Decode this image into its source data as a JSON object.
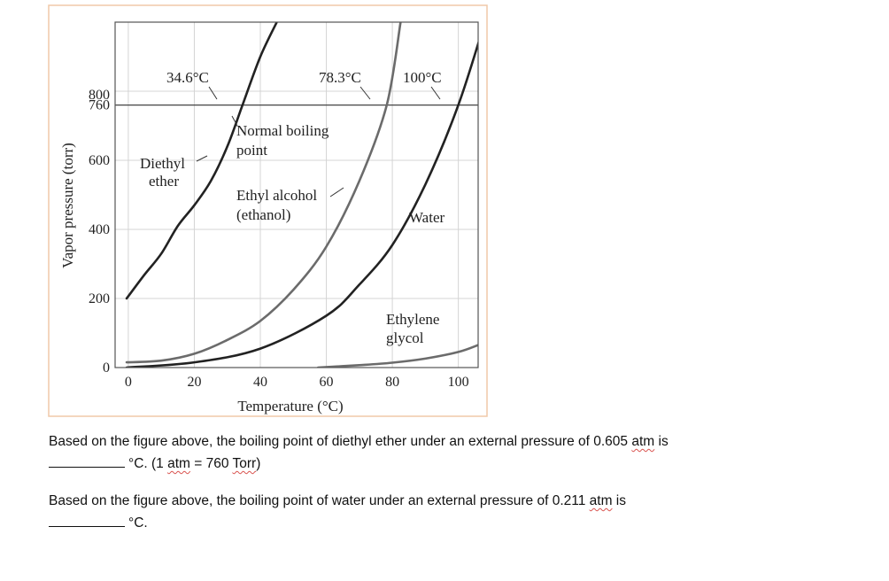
{
  "chart_data": {
    "type": "line",
    "xlabel": "Temperature (°C)",
    "ylabel": "Vapor pressure (torr)",
    "xlim": [
      -4,
      106
    ],
    "ylim": [
      0,
      1000
    ],
    "x_ticks": [
      0,
      20,
      40,
      60,
      80,
      100
    ],
    "y_ticks": [
      0,
      200,
      400,
      600,
      760,
      800
    ],
    "grid": true,
    "reference_line": {
      "y": 760,
      "label": "Normal boiling point"
    },
    "boiling_point_labels": [
      "34.6°C",
      "78.3°C",
      "100°C"
    ],
    "series": [
      {
        "name": "Diethyl ether",
        "color": "#222222",
        "x": [
          -0.5,
          5,
          10,
          15,
          20,
          25,
          30,
          34.6,
          40,
          45
        ],
        "y": [
          200,
          270,
          330,
          410,
          470,
          540,
          640,
          760,
          900,
          1000
        ]
      },
      {
        "name": "Ethyl alcohol (ethanol)",
        "color": "#6b6b6b",
        "x": [
          -0.5,
          10,
          20,
          30,
          40,
          50,
          60,
          70,
          78.3,
          82.5
        ],
        "y": [
          15,
          20,
          40,
          80,
          135,
          225,
          350,
          540,
          760,
          1000
        ]
      },
      {
        "name": "Water",
        "color": "#222222",
        "x": [
          -0.5,
          20,
          40,
          60,
          70,
          80,
          90,
          100,
          108
        ],
        "y": [
          0,
          15,
          55,
          150,
          240,
          355,
          530,
          760,
          1000
        ]
      },
      {
        "name": "Ethylene glycol",
        "color": "#6b6b6b",
        "x": [
          57.5,
          70,
          80,
          90,
          100,
          106
        ],
        "y": [
          0,
          7,
          14,
          26,
          45,
          65
        ]
      }
    ],
    "labels": {
      "bp_ether": "34.6°C",
      "bp_ethanol": "78.3°C",
      "bp_water": "100°C",
      "nbp_line1": "Normal boiling",
      "nbp_line2": "point",
      "ether_line1": "Diethyl",
      "ether_line2": "ether",
      "ethanol_line1": "Ethyl alcohol",
      "ethanol_line2": "(ethanol)",
      "water": "Water",
      "glycol_line1": "Ethylene",
      "glycol_line2": "glycol"
    }
  },
  "questions": {
    "q1_text": "Based on the figure above, the boiling point of diethyl ether under an external pressure of 0.605 ",
    "q1_atm": "atm",
    "q1_is": " is",
    "q1_line2a": "°C. (1 ",
    "q1_atm2": "atm",
    "q1_eq": " = 760 ",
    "q1_torr": "Torr",
    "q1_close": ")",
    "q2_text": "Based on the figure above, the boiling point of water under an external pressure of 0.211 ",
    "q2_atm": "atm",
    "q2_is": " is",
    "q2_line2": "°C."
  }
}
